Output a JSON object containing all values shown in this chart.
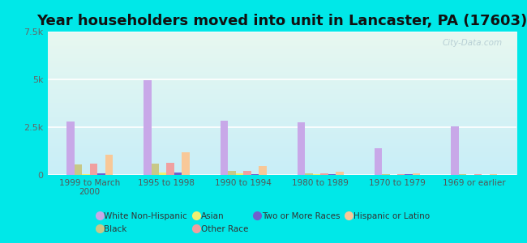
{
  "title": "Year householders moved into unit in Lancaster, PA (17603)",
  "categories": [
    "1999 to March\n2000",
    "1995 to 1998",
    "1990 to 1994",
    "1980 to 1989",
    "1970 to 1979",
    "1969 or earlier"
  ],
  "series_order": [
    "White Non-Hispanic",
    "Black",
    "Asian",
    "Other Race",
    "Two or More Races",
    "Hispanic or Latino"
  ],
  "series": {
    "White Non-Hispanic": {
      "values": [
        2800,
        4950,
        2850,
        2750,
        1400,
        2550
      ],
      "color": "#c8a8e8"
    },
    "Black": {
      "values": [
        550,
        600,
        200,
        70,
        40,
        40
      ],
      "color": "#c8c888"
    },
    "Asian": {
      "values": [
        50,
        120,
        70,
        25,
        15,
        15
      ],
      "color": "#f0f070"
    },
    "Other Race": {
      "values": [
        580,
        620,
        230,
        90,
        45,
        35
      ],
      "color": "#f0a0a0"
    },
    "Two or More Races": {
      "values": [
        90,
        120,
        55,
        25,
        25,
        15
      ],
      "color": "#7060cc"
    },
    "Hispanic or Latino": {
      "values": [
        1050,
        1200,
        480,
        160,
        70,
        55
      ],
      "color": "#f8c898"
    }
  },
  "legend_order": [
    "White Non-Hispanic",
    "Black",
    "Asian",
    "Other Race",
    "Two or More Races",
    "Hispanic or Latino"
  ],
  "ylim": [
    0,
    7500
  ],
  "yticks": [
    0,
    2500,
    5000,
    7500
  ],
  "ytick_labels": [
    "0",
    "2.5k",
    "5k",
    "7.5k"
  ],
  "background_color": "#00e8e8",
  "plot_bg_color": "#e8f8ee",
  "title_fontsize": 13,
  "watermark": "City-Data.com"
}
